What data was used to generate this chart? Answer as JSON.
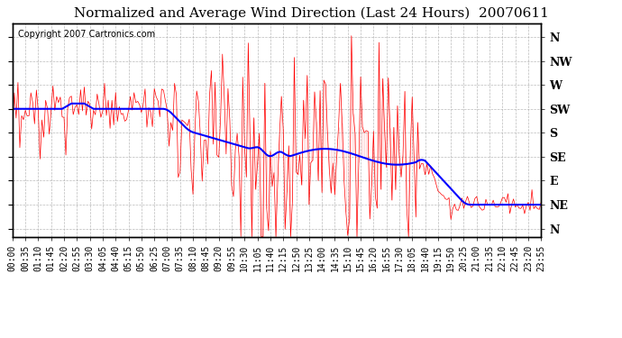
{
  "title": "Normalized and Average Wind Direction (Last 24 Hours)  20070611",
  "copyright": "Copyright 2007 Cartronics.com",
  "bg_color": "#ffffff",
  "plot_bg_color": "#ffffff",
  "grid_color": "#aaaaaa",
  "directions": [
    "N",
    "NW",
    "W",
    "SW",
    "S",
    "SE",
    "E",
    "NE",
    "N"
  ],
  "ytick_values": [
    360,
    315,
    270,
    225,
    180,
    135,
    90,
    45,
    0
  ],
  "ylim": [
    -15,
    385
  ],
  "time_labels": [
    "00:00",
    "00:35",
    "01:10",
    "01:45",
    "02:20",
    "02:55",
    "03:30",
    "04:05",
    "04:40",
    "05:15",
    "05:50",
    "06:25",
    "07:00",
    "07:35",
    "08:10",
    "08:45",
    "09:20",
    "09:55",
    "10:30",
    "11:05",
    "11:40",
    "12:15",
    "12:50",
    "13:25",
    "14:00",
    "14:35",
    "15:10",
    "15:45",
    "16:20",
    "16:55",
    "17:30",
    "18:05",
    "18:40",
    "19:15",
    "19:50",
    "20:25",
    "21:00",
    "21:35",
    "22:10",
    "22:45",
    "23:20",
    "23:55"
  ],
  "red_line_color": "#ff0000",
  "blue_line_color": "#0000ff",
  "title_fontsize": 11,
  "copyright_fontsize": 7,
  "tick_fontsize": 7,
  "ylabel_fontsize": 9
}
